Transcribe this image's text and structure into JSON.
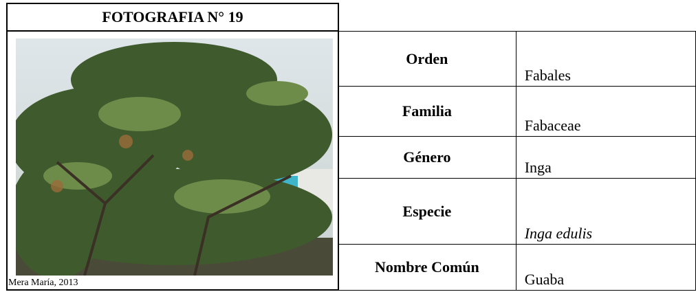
{
  "header": {
    "title": "FOTOGRAFIA N° 19"
  },
  "photo": {
    "caption": "Mera María, 2013"
  },
  "table": {
    "rows": [
      {
        "label": "Orden",
        "value": "Fabales"
      },
      {
        "label": "Familia",
        "value": "Fabaceae"
      },
      {
        "label": "Género",
        "value": "Inga"
      },
      {
        "label": "Especie",
        "value": "Inga edulis"
      },
      {
        "label": "Nombre Común",
        "value": "Guaba"
      }
    ]
  }
}
